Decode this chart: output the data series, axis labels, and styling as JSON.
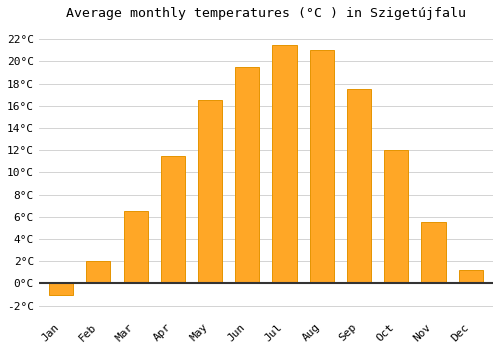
{
  "title": "Average monthly temperatures (°C ) in Szigetújfalu",
  "months": [
    "Jan",
    "Feb",
    "Mar",
    "Apr",
    "May",
    "Jun",
    "Jul",
    "Aug",
    "Sep",
    "Oct",
    "Nov",
    "Dec"
  ],
  "temperatures": [
    -1.0,
    2.0,
    6.5,
    11.5,
    16.5,
    19.5,
    21.5,
    21.0,
    17.5,
    12.0,
    5.5,
    1.2
  ],
  "bar_color": "#FFA726",
  "bar_edge_color": "#E59400",
  "ylim": [
    -3,
    23
  ],
  "ytick_vals": [
    -2,
    0,
    2,
    4,
    6,
    8,
    10,
    12,
    14,
    16,
    18,
    20,
    22
  ],
  "background_color": "#FFFFFF",
  "grid_color": "#CCCCCC",
  "title_fontsize": 9.5,
  "tick_fontsize": 8,
  "zero_line_color": "#333333",
  "figsize": [
    5.0,
    3.5
  ],
  "dpi": 100
}
